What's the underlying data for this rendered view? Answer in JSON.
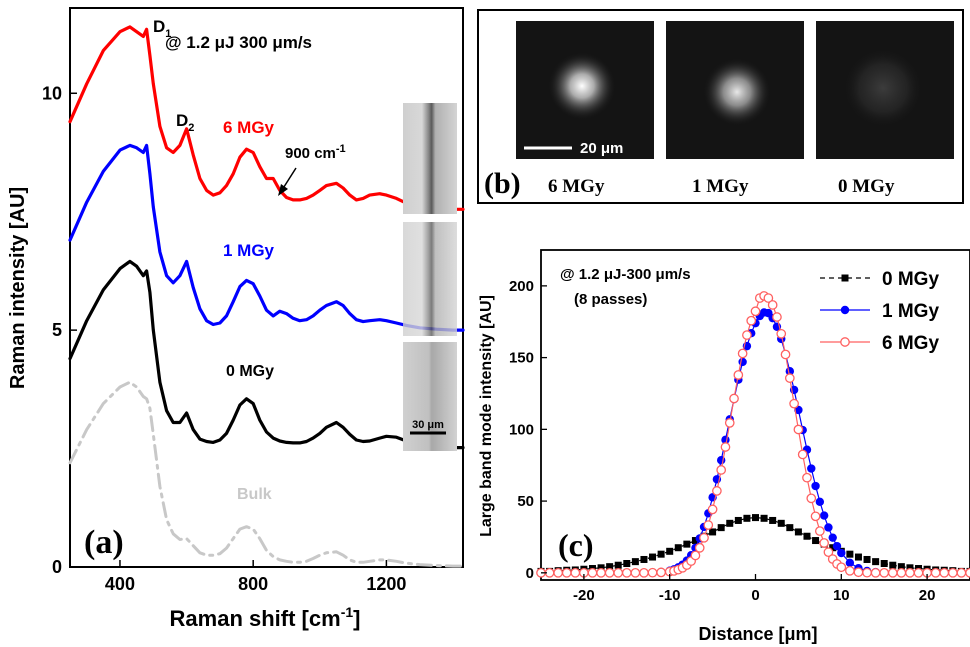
{
  "panel_a": {
    "panel_label": "(a)",
    "condition": "@ 1.2 μJ 300 μm/s",
    "ylabel": "Raman intensity [AU]",
    "xlabel": "Raman shift [cm",
    "xlabel_sup": "-1",
    "xlabel_end": "]",
    "annotations": {
      "D1": "D",
      "D1_sub": "1",
      "D2": "D",
      "D2_sub": "2",
      "wavenumber": "900 cm",
      "wavenumber_sup": "-1"
    },
    "scale_bar": "30 μm",
    "colors": {
      "6 MGy": "#ff0000",
      "1 MGy": "#0000ff",
      "0 MGy": "#000000",
      "Bulk": "#c8c8c8"
    }
  },
  "panel_b": {
    "panel_label": "(b)",
    "scale_bar": "20 μm",
    "images": [
      {
        "label": "6 MGy",
        "brightness": 1.0
      },
      {
        "label": "1 MGy",
        "brightness": 0.85
      },
      {
        "label": "0 MGy",
        "brightness": 0.18
      }
    ]
  },
  "panel_c": {
    "panel_label": "(c)",
    "condition": "@ 1.2 μJ-300 μm/s",
    "passes": "(8 passes)",
    "ylabel": "Large band mode intensity [AU]",
    "xlabel": "Distance [μm]"
  },
  "chart_data": [
    {
      "type": "line",
      "title": "",
      "xlabel": "Raman shift [cm-1]",
      "ylabel": "Raman intensity [AU]",
      "xlim": [
        250,
        1430
      ],
      "ylim": [
        0,
        11.8
      ],
      "xticks": [
        400,
        800,
        1200
      ],
      "yticks": [
        0,
        5,
        10
      ],
      "grid": false,
      "series": [
        {
          "name": "6 MGy",
          "style": "solid",
          "color": "#ff0000",
          "x": [
            250,
            300,
            350,
            400,
            430,
            450,
            470,
            480,
            490,
            500,
            520,
            540,
            560,
            580,
            600,
            620,
            640,
            660,
            680,
            700,
            720,
            740,
            760,
            780,
            800,
            820,
            840,
            860,
            880,
            900,
            920,
            940,
            960,
            980,
            1000,
            1020,
            1050,
            1070,
            1090,
            1110,
            1130,
            1150,
            1180,
            1200,
            1230,
            1260,
            1300,
            1350,
            1400,
            1430
          ],
          "y": [
            9.4,
            10.2,
            10.9,
            11.3,
            11.4,
            11.3,
            11.2,
            11.35,
            10.8,
            10.2,
            9.3,
            8.85,
            8.75,
            8.9,
            9.25,
            8.7,
            8.2,
            7.95,
            7.85,
            7.9,
            8.05,
            8.3,
            8.65,
            8.82,
            8.75,
            8.45,
            8.2,
            8.2,
            7.95,
            7.8,
            7.75,
            7.75,
            7.78,
            7.85,
            7.95,
            8.05,
            8.1,
            8.0,
            7.85,
            7.75,
            7.78,
            7.85,
            7.88,
            7.85,
            7.78,
            7.68,
            7.6,
            7.56,
            7.55,
            7.55
          ]
        },
        {
          "name": "1 MGy",
          "style": "solid",
          "color": "#0000ff",
          "x": [
            250,
            300,
            350,
            400,
            430,
            450,
            470,
            480,
            490,
            500,
            520,
            540,
            560,
            580,
            600,
            620,
            640,
            660,
            680,
            700,
            720,
            740,
            760,
            780,
            800,
            820,
            840,
            860,
            880,
            900,
            920,
            940,
            960,
            980,
            1000,
            1020,
            1050,
            1070,
            1090,
            1110,
            1130,
            1150,
            1180,
            1200,
            1230,
            1260,
            1300,
            1350,
            1400,
            1430
          ],
          "y": [
            6.9,
            7.7,
            8.35,
            8.8,
            8.9,
            8.85,
            8.75,
            8.9,
            8.3,
            7.6,
            6.65,
            6.15,
            6.0,
            6.15,
            6.45,
            5.9,
            5.45,
            5.2,
            5.12,
            5.15,
            5.3,
            5.6,
            5.92,
            6.05,
            5.98,
            5.72,
            5.42,
            5.3,
            5.4,
            5.35,
            5.25,
            5.2,
            5.22,
            5.3,
            5.42,
            5.52,
            5.6,
            5.52,
            5.35,
            5.22,
            5.18,
            5.2,
            5.22,
            5.2,
            5.15,
            5.1,
            5.05,
            5.02,
            5.0,
            5.0
          ]
        },
        {
          "name": "0 MGy",
          "style": "solid",
          "color": "#000000",
          "x": [
            250,
            300,
            350,
            400,
            430,
            450,
            470,
            480,
            490,
            500,
            520,
            540,
            560,
            580,
            600,
            620,
            640,
            660,
            680,
            700,
            720,
            740,
            760,
            780,
            800,
            820,
            840,
            860,
            880,
            900,
            920,
            940,
            960,
            980,
            1000,
            1020,
            1050,
            1070,
            1090,
            1110,
            1130,
            1150,
            1180,
            1200,
            1230,
            1260,
            1300,
            1350,
            1400,
            1430
          ],
          "y": [
            4.4,
            5.2,
            5.85,
            6.3,
            6.45,
            6.35,
            6.15,
            6.25,
            5.8,
            5.0,
            3.9,
            3.3,
            3.05,
            3.05,
            3.25,
            2.9,
            2.7,
            2.65,
            2.63,
            2.68,
            2.82,
            3.1,
            3.42,
            3.55,
            3.45,
            3.1,
            2.85,
            2.72,
            2.66,
            2.63,
            2.62,
            2.62,
            2.65,
            2.72,
            2.82,
            2.95,
            3.05,
            2.95,
            2.8,
            2.68,
            2.65,
            2.66,
            2.72,
            2.76,
            2.74,
            2.66,
            2.58,
            2.53,
            2.52,
            2.52
          ]
        },
        {
          "name": "Bulk",
          "style": "dashdot",
          "color": "#c8c8c8",
          "x": [
            250,
            300,
            350,
            400,
            430,
            450,
            470,
            480,
            490,
            500,
            520,
            540,
            560,
            580,
            600,
            620,
            640,
            660,
            680,
            700,
            720,
            740,
            760,
            780,
            800,
            820,
            840,
            860,
            880,
            900,
            920,
            940,
            960,
            980,
            1000,
            1020,
            1050,
            1070,
            1090,
            1110,
            1130,
            1150,
            1180,
            1200,
            1230,
            1260,
            1300,
            1350,
            1400,
            1430
          ],
          "y": [
            2.2,
            2.9,
            3.45,
            3.8,
            3.9,
            3.8,
            3.6,
            3.55,
            3.35,
            2.8,
            1.7,
            1.0,
            0.7,
            0.58,
            0.6,
            0.45,
            0.3,
            0.25,
            0.25,
            0.28,
            0.4,
            0.6,
            0.8,
            0.85,
            0.8,
            0.6,
            0.35,
            0.22,
            0.15,
            0.12,
            0.1,
            0.1,
            0.12,
            0.18,
            0.25,
            0.3,
            0.32,
            0.25,
            0.15,
            0.1,
            0.1,
            0.12,
            0.15,
            0.15,
            0.12,
            0.08,
            0.05,
            0.03,
            0.02,
            0.02
          ]
        }
      ]
    },
    {
      "type": "scatter",
      "title": "",
      "xlabel": "Distance [μm]",
      "ylabel": "Large band mode intensity [AU]",
      "xlim": [
        -25,
        25
      ],
      "ylim": [
        -5,
        225
      ],
      "xticks": [
        -20,
        -10,
        0,
        10,
        20
      ],
      "yticks": [
        0,
        50,
        100,
        150,
        200
      ],
      "grid": false,
      "legend": "top-right",
      "series": [
        {
          "name": "0 MGy",
          "marker": "square",
          "color": "#000000",
          "line": "dashed",
          "x": [
            -25,
            -24,
            -23,
            -22,
            -21,
            -20,
            -19,
            -18,
            -17,
            -16,
            -15,
            -14,
            -13,
            -12,
            -11,
            -10,
            -9,
            -8,
            -7,
            -6,
            -5,
            -4,
            -3,
            -2,
            -1,
            0,
            1,
            2,
            3,
            4,
            5,
            6,
            7,
            8,
            9,
            10,
            11,
            12,
            13,
            14,
            15,
            16,
            17,
            18,
            19,
            20,
            21,
            22,
            23,
            24,
            25
          ],
          "y": [
            1,
            1,
            1.5,
            1.8,
            2,
            2.5,
            3,
            3.5,
            4.3,
            5.3,
            6.5,
            7.8,
            9.3,
            11,
            13,
            15,
            17.5,
            20,
            22.5,
            25.5,
            28.5,
            31.5,
            34.5,
            36.5,
            38,
            38.5,
            38,
            36.5,
            34.5,
            31.5,
            28.5,
            25.5,
            22.5,
            20,
            17.5,
            15,
            13,
            11,
            9.3,
            7.8,
            6.5,
            5.3,
            4.3,
            3.5,
            3,
            2.5,
            2,
            1.8,
            1.5,
            1,
            1
          ]
        },
        {
          "name": "1 MGy",
          "marker": "filled-circle",
          "color": "#0000ff",
          "line": "solid",
          "x": [
            -25,
            -24,
            -23,
            -22,
            -21,
            -20,
            -19,
            -18,
            -17,
            -16,
            -15,
            -14,
            -13,
            -12,
            -11,
            -10,
            -9.5,
            -9,
            -8.5,
            -8,
            -7.5,
            -7,
            -6.5,
            -6,
            -5.5,
            -5,
            -4.5,
            -4,
            -3.5,
            -3,
            -2.5,
            -2,
            -1.5,
            -1,
            -0.5,
            0,
            0.5,
            1,
            1.5,
            2,
            2.5,
            3,
            3.5,
            4,
            4.5,
            5,
            5.5,
            6,
            6.5,
            7,
            7.5,
            8,
            8.5,
            9,
            9.5,
            10,
            11,
            12,
            13,
            14,
            15,
            16,
            17,
            18,
            19,
            20,
            21,
            22,
            23,
            24,
            25
          ],
          "y": [
            0,
            0,
            0,
            0,
            0,
            0,
            0,
            0,
            0,
            0,
            0,
            0,
            0.1,
            0.2,
            0.6,
            1.5,
            2.4,
            3.8,
            5.7,
            8.5,
            12.3,
            17.4,
            24,
            32,
            41.5,
            52.6,
            65.2,
            78.5,
            92.7,
            107,
            121,
            134.6,
            147,
            158,
            167,
            174,
            179,
            181.5,
            181,
            177.5,
            171.5,
            163,
            152.5,
            140.5,
            127.5,
            113.5,
            99.5,
            85.8,
            72.7,
            60.5,
            49.5,
            39.9,
            31.6,
            24.5,
            18.6,
            13.8,
            7,
            3.2,
            1.3,
            0.5,
            0.2,
            0,
            0,
            0,
            0,
            0,
            0,
            0,
            0,
            0,
            0
          ]
        },
        {
          "name": "6 MGy",
          "marker": "open-circle",
          "color": "#ff6060",
          "line": "solid",
          "x": [
            -25,
            -24,
            -23,
            -22,
            -21,
            -20,
            -19,
            -18,
            -17,
            -16,
            -15,
            -14,
            -13,
            -12,
            -11,
            -10,
            -9.5,
            -9,
            -8.5,
            -8,
            -7.5,
            -7,
            -6.5,
            -6,
            -5.5,
            -5,
            -4.5,
            -4,
            -3.5,
            -3,
            -2.5,
            -2,
            -1.5,
            -1,
            -0.5,
            0,
            0.5,
            1,
            1.5,
            2,
            2.5,
            3,
            3.5,
            4,
            4.5,
            5,
            5.5,
            6,
            6.5,
            7,
            7.5,
            8,
            8.5,
            9,
            9.5,
            10,
            11,
            12,
            13,
            14,
            15,
            16,
            17,
            18,
            19,
            20,
            21,
            22,
            23,
            24,
            25
          ],
          "y": [
            0,
            0,
            0,
            0,
            0,
            0,
            0,
            0,
            0,
            0,
            0,
            0,
            0,
            0.1,
            0.3,
            0.8,
            1.3,
            2.2,
            3.5,
            5.4,
            8.2,
            12.1,
            17.4,
            24.4,
            33.3,
            44.2,
            57.1,
            71.7,
            87.7,
            104.5,
            121.5,
            137.9,
            152.9,
            165.7,
            175.7,
            182.3,
            191.5,
            193,
            191.5,
            186.7,
            178.3,
            166.6,
            152.2,
            135.7,
            117.9,
            99.9,
            82.5,
            66.3,
            51.9,
            39.4,
            29.1,
            20.8,
            14.4,
            9.6,
            6.2,
            3.9,
            1.4,
            0.4,
            0.1,
            0,
            0,
            0,
            0,
            0,
            0,
            0,
            0,
            0,
            0,
            0,
            0
          ]
        }
      ]
    }
  ]
}
